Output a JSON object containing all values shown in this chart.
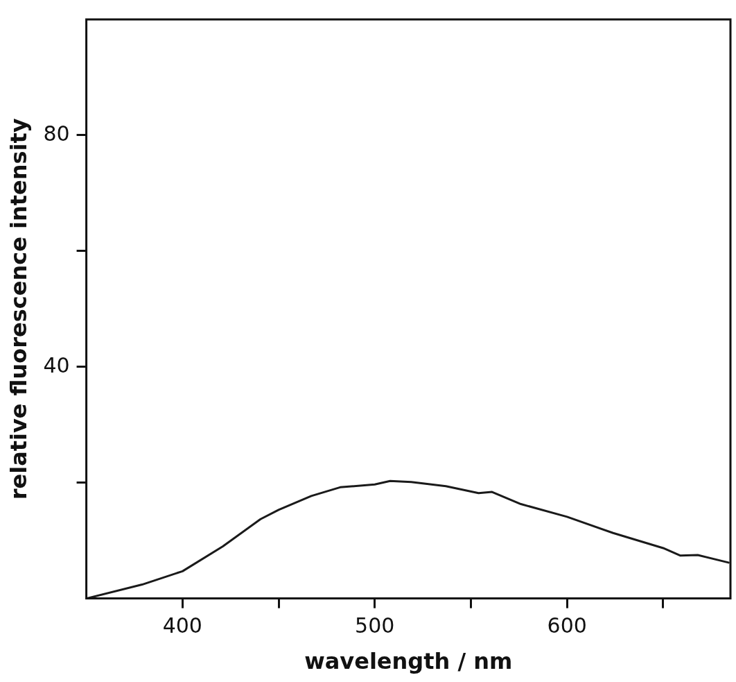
{
  "chart_data": {
    "type": "line",
    "xlabel": "wavelength / nm",
    "ylabel": "relative fluorescence intensity",
    "xlim": [
      350,
      685
    ],
    "ylim": [
      0,
      100
    ],
    "xticks": [
      400,
      {
        "value": 450,
        "label": null
      },
      500,
      {
        "value": 550,
        "label": null
      },
      600,
      {
        "value": 650,
        "label": null
      }
    ],
    "yticks": [
      {
        "value": 20,
        "label": null
      },
      40,
      {
        "value": 60,
        "label": null
      },
      80
    ],
    "tick_labels": "xy",
    "grid": false,
    "legend": false,
    "marker": "none",
    "line_style": "solid",
    "series": [
      {
        "color": "#1a1a1a",
        "x": [
          350,
          379,
          400,
          421,
          440.6,
          450,
          467,
          482,
          500,
          508,
          519,
          537,
          554,
          561,
          576,
          600,
          624,
          650,
          659,
          668,
          684
        ],
        "values": [
          0,
          2.4,
          4.7,
          9.0,
          13.7,
          15.3,
          17.7,
          19.2,
          19.7,
          20.3,
          20.1,
          19.4,
          18.2,
          18.4,
          16.3,
          14.1,
          11.3,
          8.7,
          7.4,
          7.5,
          6.2
        ]
      }
    ]
  }
}
